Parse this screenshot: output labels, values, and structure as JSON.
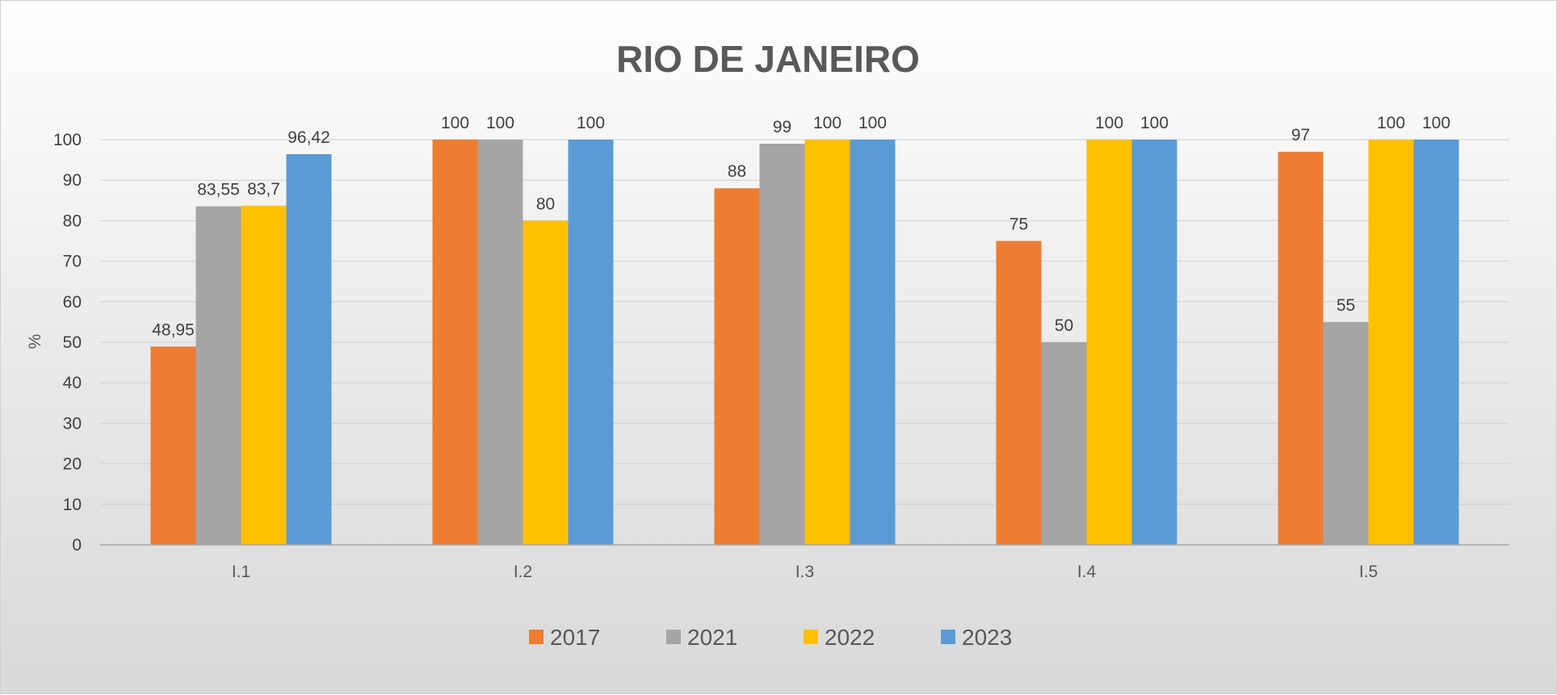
{
  "chart_data": {
    "type": "bar",
    "title": "RIO DE JANEIRO",
    "xlabel": "",
    "ylabel": "%",
    "ylim": [
      0,
      100
    ],
    "yticks": [
      0,
      10,
      20,
      30,
      40,
      50,
      60,
      70,
      80,
      90,
      100
    ],
    "grid": true,
    "legend_position": "bottom",
    "categories": [
      "I.1",
      "I.2",
      "I.3",
      "I.4",
      "I.5"
    ],
    "series": [
      {
        "name": "2017",
        "color": "#ED7D31",
        "values": [
          48.95,
          100,
          88,
          75,
          97
        ],
        "labels": [
          "48,95",
          "100",
          "88",
          "75",
          "97"
        ]
      },
      {
        "name": "2021",
        "color": "#A5A5A5",
        "values": [
          83.55,
          100,
          99,
          50,
          55
        ],
        "labels": [
          "83,55",
          "100",
          "99",
          "50",
          "55"
        ]
      },
      {
        "name": "2022",
        "color": "#FFC000",
        "values": [
          83.7,
          80,
          100,
          100,
          100
        ],
        "labels": [
          "83,7",
          "80",
          "100",
          "100",
          "100"
        ]
      },
      {
        "name": "2023",
        "color": "#5B9BD5",
        "values": [
          96.42,
          100,
          100,
          100,
          100
        ],
        "labels": [
          "96,42",
          "100",
          "100",
          "100",
          "100"
        ]
      }
    ]
  }
}
